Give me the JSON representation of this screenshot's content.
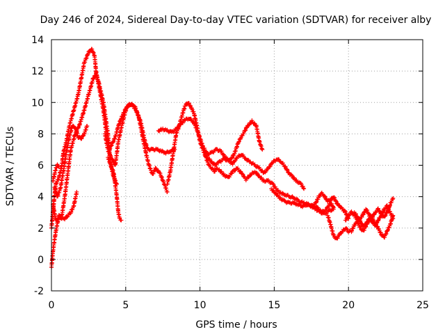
{
  "chart_data": {
    "type": "scatter",
    "title": "Day 246 of 2024, Sidereal Day-to-day VTEC variation (SDTVAR) for receiver alby",
    "xlabel": "GPS time / hours",
    "ylabel": "SDTVAR / TECUs",
    "xlim": [
      0,
      25
    ],
    "ylim": [
      -2,
      14
    ],
    "xticks": [
      "0",
      "5",
      "10",
      "15",
      "20",
      "25"
    ],
    "yticks": [
      "-2",
      "0",
      "2",
      "4",
      "6",
      "8",
      "10",
      "12",
      "14"
    ],
    "grid": true,
    "marker": "+",
    "series_color": "#ff0000",
    "series": [
      {
        "name": "s1",
        "x": [
          0.0,
          0.1,
          0.2,
          0.3,
          0.5,
          0.7,
          0.8,
          1.0,
          1.2,
          1.5,
          1.8,
          2.0,
          2.2,
          2.5,
          2.7,
          2.9,
          3.0,
          3.2,
          3.5,
          3.7,
          3.9,
          4.0,
          4.3,
          4.5,
          4.7,
          5.0,
          5.3,
          5.6,
          5.9,
          6.2,
          6.5,
          6.8,
          7.0,
          7.3,
          7.6,
          7.8
        ],
        "y": [
          2.0,
          3.0,
          4.0,
          4.8,
          5.2,
          6.0,
          6.8,
          7.5,
          8.5,
          9.5,
          10.5,
          11.5,
          12.5,
          13.2,
          13.4,
          13.0,
          12.0,
          11.0,
          9.5,
          8.0,
          7.0,
          7.2,
          7.8,
          8.5,
          9.0,
          9.6,
          9.9,
          9.8,
          9.0,
          7.5,
          6.2,
          5.4,
          5.8,
          5.5,
          4.8,
          4.3
        ]
      },
      {
        "name": "s2",
        "x": [
          0.1,
          0.3,
          0.5,
          0.7,
          0.9,
          1.1,
          1.3,
          1.6,
          1.9,
          2.2,
          2.5,
          2.8,
          3.0,
          3.2,
          3.5,
          3.8,
          4.0,
          4.2,
          4.4,
          4.5,
          4.6,
          4.7
        ],
        "y": [
          3.5,
          2.5,
          2.6,
          2.8,
          4.0,
          5.5,
          7.0,
          8.0,
          8.6,
          9.5,
          10.5,
          11.5,
          11.8,
          11.2,
          10.0,
          8.0,
          6.0,
          5.5,
          4.0,
          3.0,
          2.6,
          2.5
        ]
      },
      {
        "name": "s3",
        "x": [
          0.0,
          0.1,
          0.2,
          0.3,
          0.5,
          0.7,
          0.9,
          1.1,
          1.3,
          1.5,
          1.7
        ],
        "y": [
          -0.5,
          0.5,
          1.2,
          1.8,
          2.8,
          2.6,
          2.6,
          2.8,
          3.0,
          3.4,
          4.3
        ]
      },
      {
        "name": "s4",
        "x": [
          0.2,
          0.4,
          0.6,
          0.8,
          1.0,
          1.2,
          1.4,
          1.6,
          1.8,
          2.0,
          2.2,
          2.4
        ],
        "y": [
          4.6,
          4.0,
          4.5,
          5.6,
          6.8,
          7.8,
          8.5,
          8.4,
          7.8,
          7.7,
          8.0,
          8.5
        ]
      },
      {
        "name": "s5",
        "x": [
          0.1,
          0.2,
          0.3,
          0.4,
          0.5
        ],
        "y": [
          5.0,
          5.4,
          5.8,
          6.0,
          5.9
        ]
      },
      {
        "name": "s6",
        "x": [
          3.6,
          3.8,
          4.0,
          4.2,
          4.3,
          4.5,
          4.8,
          5.1,
          5.4,
          5.7,
          6.0,
          6.3,
          6.5,
          6.8,
          7.1,
          7.4,
          7.7,
          8.0,
          8.3
        ],
        "y": [
          8.0,
          7.0,
          6.5,
          6.2,
          6.0,
          7.5,
          8.8,
          9.8,
          9.9,
          9.5,
          8.8,
          7.5,
          7.0,
          7.0,
          7.0,
          6.9,
          6.8,
          6.9,
          7.0
        ]
      },
      {
        "name": "s7",
        "x": [
          3.8,
          4.0,
          4.2,
          4.4
        ],
        "y": [
          6.5,
          6.0,
          5.2,
          4.8
        ]
      },
      {
        "name": "s8",
        "x": [
          7.8,
          8.0,
          8.2,
          8.4,
          8.6,
          8.8,
          9.0,
          9.2,
          9.4,
          9.6,
          9.8,
          10.0,
          10.2,
          10.4,
          10.6,
          10.8,
          11.0
        ],
        "y": [
          4.8,
          5.6,
          6.8,
          8.0,
          8.5,
          9.2,
          9.8,
          10.0,
          9.7,
          9.3,
          8.5,
          7.5,
          7.0,
          6.5,
          6.0,
          5.8,
          5.6
        ]
      },
      {
        "name": "s9",
        "x": [
          7.2,
          7.5,
          7.8,
          8.1,
          8.4,
          8.7,
          9.0,
          9.3,
          9.6,
          9.9,
          10.2,
          10.5,
          10.8,
          11.1,
          11.4,
          11.7,
          12.0,
          12.3,
          12.6,
          12.9,
          13.2,
          13.5,
          13.8,
          14.0,
          14.2
        ],
        "y": [
          8.2,
          8.3,
          8.2,
          8.1,
          8.3,
          8.6,
          8.9,
          9.0,
          8.7,
          8.0,
          7.2,
          6.7,
          6.8,
          7.0,
          6.9,
          6.5,
          6.3,
          6.7,
          7.5,
          8.0,
          8.5,
          8.8,
          8.5,
          7.5,
          7.0
        ]
      },
      {
        "name": "s10",
        "x": [
          10.5,
          10.8,
          11.0,
          11.3,
          11.6,
          11.9,
          12.2,
          12.5,
          12.8,
          13.1,
          13.4,
          13.7,
          14.0,
          14.3,
          14.6,
          14.9,
          15.2,
          15.5,
          15.8,
          16.0,
          16.2,
          16.5,
          16.8,
          17.0
        ],
        "y": [
          6.5,
          6.2,
          6.0,
          6.2,
          6.4,
          6.3,
          6.1,
          6.5,
          6.7,
          6.4,
          6.2,
          6.0,
          5.8,
          5.5,
          5.8,
          6.2,
          6.4,
          6.2,
          5.8,
          5.5,
          5.3,
          5.0,
          4.8,
          4.5
        ]
      },
      {
        "name": "s11",
        "x": [
          11.0,
          11.3,
          11.6,
          11.9,
          12.2,
          12.5,
          12.8,
          13.1,
          13.4,
          13.7,
          14.0,
          14.3,
          14.6,
          14.9,
          15.2,
          15.5,
          15.8,
          16.1,
          16.4,
          16.7,
          17.0,
          17.3,
          17.6,
          17.9,
          18.2,
          18.5,
          18.8,
          19.0
        ],
        "y": [
          5.8,
          5.7,
          5.4,
          5.2,
          5.6,
          5.8,
          5.5,
          5.1,
          5.4,
          5.6,
          5.3,
          5.0,
          5.0,
          4.8,
          4.4,
          4.2,
          4.1,
          4.0,
          3.9,
          3.7,
          3.6,
          3.5,
          3.4,
          3.3,
          3.0,
          3.2,
          3.6,
          3.3
        ]
      },
      {
        "name": "s12",
        "x": [
          14.8,
          15.1,
          15.4,
          15.7,
          16.0,
          16.3,
          16.6,
          16.9,
          17.2,
          17.5,
          17.8,
          18.1,
          18.4,
          18.7,
          19.0
        ],
        "y": [
          4.5,
          4.2,
          3.9,
          3.7,
          3.6,
          3.6,
          3.5,
          3.4,
          3.5,
          3.4,
          3.2,
          3.0,
          2.9,
          3.1,
          3.2
        ]
      },
      {
        "name": "s13",
        "x": [
          17.6,
          17.8,
          18.0,
          18.2,
          18.4,
          18.6,
          18.8,
          19.0,
          19.2,
          19.4,
          19.6,
          19.8,
          20.0
        ],
        "y": [
          3.4,
          3.6,
          4.0,
          4.2,
          4.0,
          3.7,
          3.8,
          4.0,
          3.6,
          3.4,
          3.2,
          3.0,
          2.6
        ]
      },
      {
        "name": "s14",
        "x": [
          18.6,
          18.8,
          19.0,
          19.2,
          19.4,
          19.6,
          19.8,
          20.0,
          20.2,
          20.4,
          20.6,
          20.8,
          21.0,
          21.2,
          21.4,
          21.6,
          21.8,
          22.0,
          22.2,
          22.4,
          22.6,
          22.8,
          23.0
        ],
        "y": [
          2.8,
          2.2,
          1.5,
          1.3,
          1.6,
          1.8,
          2.0,
          1.8,
          1.8,
          2.2,
          2.4,
          2.0,
          1.8,
          2.2,
          2.5,
          2.6,
          2.3,
          2.0,
          1.6,
          1.4,
          1.8,
          2.2,
          2.8
        ]
      },
      {
        "name": "s15",
        "x": [
          19.8,
          20.0,
          20.2,
          20.4,
          20.6,
          20.8,
          21.0,
          21.2,
          21.4,
          21.6,
          21.8,
          22.0,
          22.2,
          22.4,
          22.6,
          22.8,
          23.0
        ],
        "y": [
          2.5,
          2.8,
          3.0,
          2.8,
          2.5,
          2.6,
          2.9,
          3.2,
          2.8,
          2.7,
          3.0,
          3.2,
          2.9,
          2.7,
          3.0,
          3.5,
          3.9
        ]
      },
      {
        "name": "s16",
        "x": [
          20.4,
          20.6,
          20.8,
          21.0,
          21.2,
          21.4,
          21.6,
          21.8,
          22.0,
          22.2,
          22.4,
          22.6,
          22.8,
          23.0
        ],
        "y": [
          3.0,
          2.7,
          2.4,
          2.1,
          2.3,
          2.6,
          2.4,
          2.2,
          2.5,
          2.8,
          3.2,
          3.4,
          3.0,
          2.6
        ]
      }
    ]
  }
}
